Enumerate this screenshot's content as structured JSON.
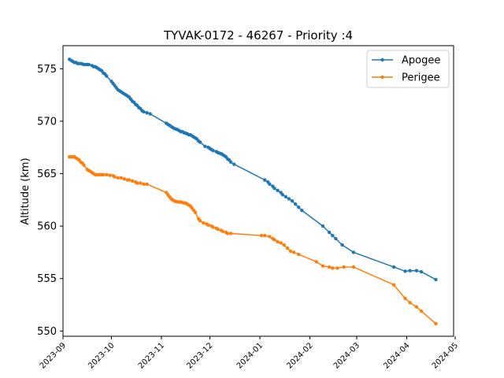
{
  "chart_data": {
    "type": "line",
    "title": "TYVAK-0172 - 46267 - Priority :4",
    "xlabel": "",
    "ylabel": "Altitude (km)",
    "ylim": [
      549.5,
      577.2
    ],
    "xlim": [
      "2023-09-01",
      "2024-04-30"
    ],
    "x_ticks": [
      "2023-09",
      "2023-10",
      "2023-11",
      "2023-12",
      "2024-01",
      "2024-02",
      "2024-03",
      "2024-04",
      "2024-05"
    ],
    "y_ticks": [
      550,
      555,
      560,
      565,
      570,
      575
    ],
    "legend_position": "top-right",
    "grid": false,
    "series": [
      {
        "name": "Apogee",
        "color": "#1f77b4",
        "points": [
          [
            "2023-09-05",
            575.9
          ],
          [
            "2023-09-06",
            575.8
          ],
          [
            "2023-09-07",
            575.7
          ],
          [
            "2023-09-08",
            575.6
          ],
          [
            "2023-09-09",
            575.6
          ],
          [
            "2023-09-10",
            575.5
          ],
          [
            "2023-09-11",
            575.5
          ],
          [
            "2023-09-12",
            575.5
          ],
          [
            "2023-09-13",
            575.45
          ],
          [
            "2023-09-14",
            575.4
          ],
          [
            "2023-09-15",
            575.4
          ],
          [
            "2023-09-16",
            575.4
          ],
          [
            "2023-09-17",
            575.4
          ],
          [
            "2023-09-19",
            575.3
          ],
          [
            "2023-09-20",
            575.2
          ],
          [
            "2023-09-21",
            575.2
          ],
          [
            "2023-09-22",
            575.1
          ],
          [
            "2023-09-23",
            575.0
          ],
          [
            "2023-09-24",
            574.9
          ],
          [
            "2023-09-25",
            574.8
          ],
          [
            "2023-09-26",
            574.6
          ],
          [
            "2023-09-27",
            574.5
          ],
          [
            "2023-09-28",
            574.3
          ],
          [
            "2023-10-01",
            573.8
          ],
          [
            "2023-10-02",
            573.6
          ],
          [
            "2023-10-03",
            573.4
          ],
          [
            "2023-10-04",
            573.2
          ],
          [
            "2023-10-05",
            573.0
          ],
          [
            "2023-10-06",
            572.9
          ],
          [
            "2023-10-07",
            572.8
          ],
          [
            "2023-10-08",
            572.7
          ],
          [
            "2023-10-09",
            572.6
          ],
          [
            "2023-10-10",
            572.5
          ],
          [
            "2023-10-11",
            572.4
          ],
          [
            "2023-10-12",
            572.3
          ],
          [
            "2023-10-13",
            572.1
          ],
          [
            "2023-10-14",
            571.9
          ],
          [
            "2023-10-15",
            571.8
          ],
          [
            "2023-10-16",
            571.6
          ],
          [
            "2023-10-17",
            571.5
          ],
          [
            "2023-10-18",
            571.3
          ],
          [
            "2023-10-19",
            571.2
          ],
          [
            "2023-10-20",
            571.0
          ],
          [
            "2023-10-21",
            570.9
          ],
          [
            "2023-10-23",
            570.8
          ],
          [
            "2023-10-25",
            570.7
          ],
          [
            "2023-11-04",
            569.8
          ],
          [
            "2023-11-05",
            569.7
          ],
          [
            "2023-11-06",
            569.6
          ],
          [
            "2023-11-07",
            569.5
          ],
          [
            "2023-11-08",
            569.4
          ],
          [
            "2023-11-09",
            569.3
          ],
          [
            "2023-11-10",
            569.25
          ],
          [
            "2023-11-11",
            569.2
          ],
          [
            "2023-11-12",
            569.1
          ],
          [
            "2023-11-13",
            569.0
          ],
          [
            "2023-11-14",
            569.0
          ],
          [
            "2023-11-15",
            568.9
          ],
          [
            "2023-11-16",
            568.85
          ],
          [
            "2023-11-17",
            568.8
          ],
          [
            "2023-11-18",
            568.7
          ],
          [
            "2023-11-19",
            568.7
          ],
          [
            "2023-11-20",
            568.6
          ],
          [
            "2023-11-21",
            568.5
          ],
          [
            "2023-11-22",
            568.4
          ],
          [
            "2023-11-23",
            568.3
          ],
          [
            "2023-11-24",
            568.1
          ],
          [
            "2023-11-25",
            568.0
          ],
          [
            "2023-11-28",
            567.6
          ],
          [
            "2023-11-30",
            567.5
          ],
          [
            "2023-12-01",
            567.4
          ],
          [
            "2023-12-02",
            567.3
          ],
          [
            "2023-12-03",
            567.2
          ],
          [
            "2023-12-05",
            567.1
          ],
          [
            "2023-12-06",
            567.0
          ],
          [
            "2023-12-07",
            566.95
          ],
          [
            "2023-12-08",
            566.9
          ],
          [
            "2023-12-09",
            566.8
          ],
          [
            "2023-12-10",
            566.7
          ],
          [
            "2023-12-11",
            566.6
          ],
          [
            "2023-12-12",
            566.4
          ],
          [
            "2023-12-13",
            566.3
          ],
          [
            "2023-12-14",
            566.1
          ],
          [
            "2023-12-16",
            565.9
          ],
          [
            "2024-01-04",
            564.4
          ],
          [
            "2024-01-06",
            564.2
          ],
          [
            "2024-01-07",
            564.0
          ],
          [
            "2024-01-09",
            563.8
          ],
          [
            "2024-01-10",
            563.6
          ],
          [
            "2024-01-12",
            563.4
          ],
          [
            "2024-01-14",
            563.2
          ],
          [
            "2024-01-15",
            563.0
          ],
          [
            "2024-01-17",
            562.8
          ],
          [
            "2024-01-19",
            562.6
          ],
          [
            "2024-01-21",
            562.4
          ],
          [
            "2024-01-23",
            562.1
          ],
          [
            "2024-01-25",
            561.8
          ],
          [
            "2024-01-27",
            561.5
          ],
          [
            "2024-02-09",
            560.0
          ],
          [
            "2024-02-13",
            559.4
          ],
          [
            "2024-02-15",
            559.1
          ],
          [
            "2024-02-17",
            558.8
          ],
          [
            "2024-02-21",
            558.2
          ],
          [
            "2024-02-28",
            557.5
          ],
          [
            "2024-03-24",
            556.1
          ],
          [
            "2024-03-31",
            555.7
          ],
          [
            "2024-04-03",
            555.75
          ],
          [
            "2024-04-07",
            555.75
          ],
          [
            "2024-04-10",
            555.65
          ],
          [
            "2024-04-19",
            554.9
          ]
        ]
      },
      {
        "name": "Perigee",
        "color": "#ff7f0e",
        "points": [
          [
            "2023-09-05",
            566.6
          ],
          [
            "2023-09-06",
            566.6
          ],
          [
            "2023-09-07",
            566.6
          ],
          [
            "2023-09-08",
            566.6
          ],
          [
            "2023-09-09",
            566.5
          ],
          [
            "2023-09-10",
            566.4
          ],
          [
            "2023-09-11",
            566.3
          ],
          [
            "2023-09-12",
            566.1
          ],
          [
            "2023-09-13",
            566.0
          ],
          [
            "2023-09-14",
            565.8
          ],
          [
            "2023-09-16",
            565.4
          ],
          [
            "2023-09-17",
            565.3
          ],
          [
            "2023-09-18",
            565.2
          ],
          [
            "2023-09-19",
            565.1
          ],
          [
            "2023-09-20",
            565.0
          ],
          [
            "2023-09-21",
            564.9
          ],
          [
            "2023-09-22",
            564.9
          ],
          [
            "2023-09-23",
            564.9
          ],
          [
            "2023-09-24",
            564.9
          ],
          [
            "2023-09-25",
            564.9
          ],
          [
            "2023-09-26",
            564.9
          ],
          [
            "2023-09-28",
            564.9
          ],
          [
            "2023-09-30",
            564.85
          ],
          [
            "2023-10-02",
            564.8
          ],
          [
            "2023-10-03",
            564.7
          ],
          [
            "2023-10-05",
            564.6
          ],
          [
            "2023-10-07",
            564.6
          ],
          [
            "2023-10-09",
            564.5
          ],
          [
            "2023-10-11",
            564.4
          ],
          [
            "2023-10-12",
            564.4
          ],
          [
            "2023-10-14",
            564.3
          ],
          [
            "2023-10-16",
            564.2
          ],
          [
            "2023-10-17",
            564.1
          ],
          [
            "2023-10-19",
            564.1
          ],
          [
            "2023-10-21",
            564.0
          ],
          [
            "2023-10-23",
            564.0
          ],
          [
            "2023-11-04",
            563.2
          ],
          [
            "2023-11-05",
            563.0
          ],
          [
            "2023-11-06",
            562.8
          ],
          [
            "2023-11-07",
            562.6
          ],
          [
            "2023-11-08",
            562.5
          ],
          [
            "2023-11-09",
            562.4
          ],
          [
            "2023-11-10",
            562.35
          ],
          [
            "2023-11-11",
            562.3
          ],
          [
            "2023-11-12",
            562.3
          ],
          [
            "2023-11-13",
            562.3
          ],
          [
            "2023-11-14",
            562.25
          ],
          [
            "2023-11-15",
            562.2
          ],
          [
            "2023-11-16",
            562.2
          ],
          [
            "2023-11-17",
            562.1
          ],
          [
            "2023-11-18",
            562.0
          ],
          [
            "2023-11-19",
            561.9
          ],
          [
            "2023-11-20",
            561.7
          ],
          [
            "2023-11-21",
            561.5
          ],
          [
            "2023-11-22",
            561.3
          ],
          [
            "2023-11-24",
            560.7
          ],
          [
            "2023-11-25",
            560.5
          ],
          [
            "2023-11-27",
            560.3
          ],
          [
            "2023-11-29",
            560.2
          ],
          [
            "2023-11-30",
            560.1
          ],
          [
            "2023-12-02",
            560.0
          ],
          [
            "2023-12-03",
            559.9
          ],
          [
            "2023-12-05",
            559.8
          ],
          [
            "2023-12-06",
            559.7
          ],
          [
            "2023-12-08",
            559.6
          ],
          [
            "2023-12-09",
            559.5
          ],
          [
            "2023-12-11",
            559.4
          ],
          [
            "2023-12-12",
            559.3
          ],
          [
            "2023-12-14",
            559.3
          ],
          [
            "2024-01-02",
            559.1
          ],
          [
            "2024-01-04",
            559.1
          ],
          [
            "2024-01-07",
            559.0
          ],
          [
            "2024-01-09",
            558.8
          ],
          [
            "2024-01-10",
            558.7
          ],
          [
            "2024-01-12",
            558.5
          ],
          [
            "2024-01-14",
            558.4
          ],
          [
            "2024-01-16",
            558.2
          ],
          [
            "2024-01-18",
            557.9
          ],
          [
            "2024-01-20",
            557.6
          ],
          [
            "2024-01-22",
            557.5
          ],
          [
            "2024-01-25",
            557.3
          ],
          [
            "2024-02-05",
            556.6
          ],
          [
            "2024-02-09",
            556.2
          ],
          [
            "2024-02-13",
            556.1
          ],
          [
            "2024-02-15",
            556.0
          ],
          [
            "2024-02-18",
            556.0
          ],
          [
            "2024-02-22",
            556.1
          ],
          [
            "2024-02-28",
            556.1
          ],
          [
            "2024-03-24",
            554.4
          ],
          [
            "2024-03-31",
            553.1
          ],
          [
            "2024-04-03",
            552.7
          ],
          [
            "2024-04-07",
            552.3
          ],
          [
            "2024-04-10",
            551.9
          ],
          [
            "2024-04-19",
            550.7
          ]
        ]
      }
    ]
  }
}
